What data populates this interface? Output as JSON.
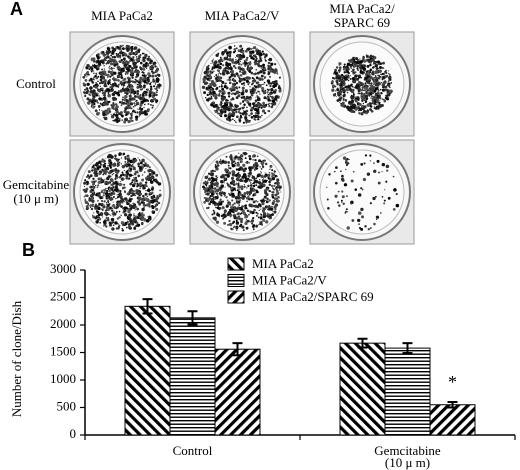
{
  "panel_a": {
    "label": "A",
    "columns": [
      "MIA PaCa2",
      "MIA PaCa2/V",
      "MIA PaCa2/\nSPARC 69"
    ],
    "rows": [
      "Control",
      "Gemcitabine\n(10 μ m)"
    ]
  },
  "chart_data": {
    "type": "bar",
    "label": "B",
    "y_label": "Number of clone/Dish",
    "categories": [
      "Control",
      "Gemcitabine\n(10 μ m)"
    ],
    "series": [
      {
        "name": "MIA PaCa2",
        "color": "#000000",
        "pattern": "backslash",
        "values": [
          2340,
          1670
        ],
        "errors": [
          130,
          80
        ]
      },
      {
        "name": "MIA PaCa2/V",
        "color": "#000000",
        "pattern": "horizontal",
        "values": [
          2130,
          1580
        ],
        "errors": [
          120,
          90
        ]
      },
      {
        "name": "MIA PaCa2/SPARC 69",
        "color": "#000000",
        "pattern": "slash",
        "values": [
          1560,
          550
        ],
        "errors": [
          110,
          50
        ]
      }
    ],
    "annotations": [
      {
        "text": "*",
        "series": 2,
        "category": 1
      }
    ],
    "ylim": [
      0,
      3000
    ],
    "yticks": [
      0,
      500,
      1000,
      1500,
      2000,
      2500,
      3000
    ],
    "legend": "top"
  }
}
